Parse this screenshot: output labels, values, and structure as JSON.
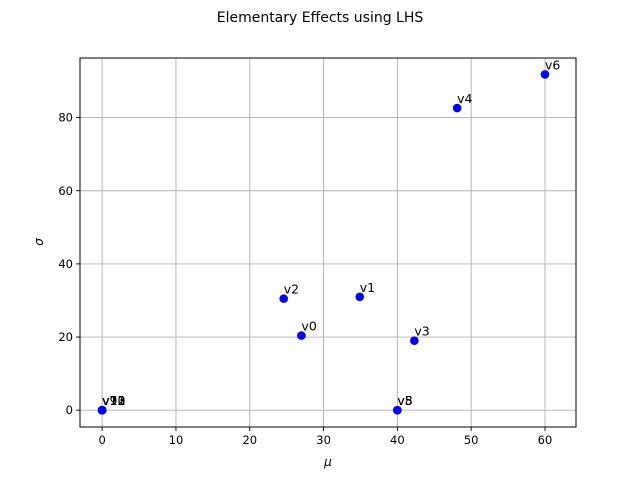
{
  "chart_data": {
    "type": "scatter",
    "title": "Elementary Effects using LHS",
    "xlabel": "μ",
    "ylabel": "σ",
    "xlim": [
      -3,
      64.2
    ],
    "ylim": [
      -4.6,
      96.3
    ],
    "xticks": [
      0,
      10,
      20,
      30,
      40,
      50,
      60
    ],
    "yticks": [
      0,
      20,
      40,
      60,
      80
    ],
    "grid": true,
    "marker_color": "#0000ff",
    "points": [
      {
        "label": "v0",
        "x": 27.0,
        "y": 20.4
      },
      {
        "label": "v1",
        "x": 34.9,
        "y": 31.0
      },
      {
        "label": "v2",
        "x": 24.6,
        "y": 30.5
      },
      {
        "label": "v3",
        "x": 42.3,
        "y": 19.0
      },
      {
        "label": "v4",
        "x": 48.1,
        "y": 82.6
      },
      {
        "label": "v5",
        "x": 40.0,
        "y": 0.0
      },
      {
        "label": "v6",
        "x": 60.0,
        "y": 91.8
      },
      {
        "label": "v7",
        "x": 0.0,
        "y": 0.0
      },
      {
        "label": "v8",
        "x": 40.0,
        "y": 0.0
      },
      {
        "label": "v9",
        "x": 0.0,
        "y": 0.0
      },
      {
        "label": "v10",
        "x": 0.0,
        "y": 0.0
      },
      {
        "label": "v11",
        "x": 0.0,
        "y": 0.0
      },
      {
        "label": "v12",
        "x": 0.0,
        "y": 0.0
      },
      {
        "label": "v13",
        "x": 0.0,
        "y": 0.0
      }
    ]
  }
}
